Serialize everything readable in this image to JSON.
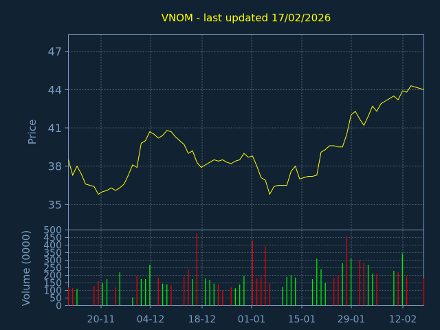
{
  "chart_data": [
    {
      "type": "line",
      "title": "VNOM - last updated 17/02/2026",
      "ylabel": "Price",
      "ylim": [
        33,
        48.3
      ],
      "yticks": [
        35,
        38,
        41,
        44,
        47
      ],
      "line_color": "#ffff00",
      "series": [
        {
          "values": [
            38.5,
            37.3,
            38.0,
            37.4,
            36.6,
            36.5,
            36.4,
            35.8,
            36.0,
            36.1,
            36.3,
            36.1,
            36.3,
            36.6,
            37.3,
            38.1,
            37.9,
            39.8,
            40.0,
            40.7,
            40.5,
            40.2,
            40.4,
            40.8,
            40.7,
            40.3,
            40.0,
            39.7,
            39.0,
            39.2,
            38.3,
            37.9,
            38.1,
            38.3,
            38.5,
            38.4,
            38.5,
            38.3,
            38.2,
            38.4,
            38.5,
            39.0,
            38.7,
            38.8,
            38.0,
            37.1,
            36.9,
            35.8,
            36.4,
            36.5,
            36.5,
            36.5,
            37.6,
            38.0,
            37.0,
            37.1,
            37.2,
            37.2,
            37.3,
            39.1,
            39.3,
            39.6,
            39.6,
            39.5,
            39.5,
            40.5,
            42.0,
            42.3,
            41.7,
            41.2,
            41.9,
            42.7,
            42.3,
            42.9,
            43.1,
            43.3,
            43.5,
            43.2,
            43.9,
            43.8,
            44.3,
            44.2,
            44.1,
            44.0
          ]
        }
      ]
    },
    {
      "type": "bar",
      "ylabel": "Volume (0000)",
      "ylim": [
        0,
        500
      ],
      "yticks": [
        0,
        50,
        100,
        150,
        200,
        250,
        300,
        350,
        400,
        450,
        500
      ],
      "colors": {
        "up": "#00ee00",
        "down": "#ee0000"
      },
      "series": [
        {
          "values": [
            120,
            115,
            110,
            0,
            0,
            0,
            130,
            160,
            150,
            175,
            0,
            120,
            220,
            0,
            0,
            55,
            195,
            175,
            175,
            270,
            0,
            185,
            145,
            140,
            135,
            0,
            0,
            190,
            240,
            175,
            480,
            0,
            180,
            170,
            145,
            140,
            100,
            0,
            120,
            115,
            140,
            195,
            0,
            430,
            180,
            190,
            390,
            150,
            0,
            0,
            125,
            190,
            200,
            185,
            0,
            0,
            0,
            175,
            310,
            240,
            150,
            0,
            185,
            200,
            280,
            460,
            310,
            0,
            300,
            280,
            270,
            210,
            210,
            0,
            0,
            0,
            230,
            220,
            345,
            195,
            0,
            0,
            0,
            180
          ],
          "direction": [
            "d",
            "d",
            "u",
            "u",
            "d",
            "d",
            "d",
            "d",
            "u",
            "u",
            "u",
            "d",
            "u",
            "u",
            "u",
            "u",
            "d",
            "u",
            "u",
            "u",
            "d",
            "d",
            "u",
            "u",
            "d",
            "d",
            "d",
            "d",
            "d",
            "u",
            "d",
            "d",
            "u",
            "u",
            "u",
            "d",
            "d",
            "d",
            "d",
            "u",
            "u",
            "u",
            "d",
            "d",
            "d",
            "d",
            "d",
            "d",
            "u",
            "u",
            "u",
            "u",
            "u",
            "u",
            "d",
            "u",
            "u",
            "u",
            "u",
            "u",
            "u",
            "u",
            "d",
            "d",
            "u",
            "d",
            "u",
            "d",
            "d",
            "d",
            "u",
            "u",
            "d",
            "u",
            "u",
            "u",
            "u",
            "d",
            "u",
            "d",
            "u",
            "d",
            "d",
            "d"
          ]
        }
      ]
    }
  ],
  "xaxis": {
    "tick_labels": [
      "20-11",
      "04-12",
      "18-12",
      "01-01",
      "15-01",
      "29-01",
      "12-02"
    ]
  }
}
